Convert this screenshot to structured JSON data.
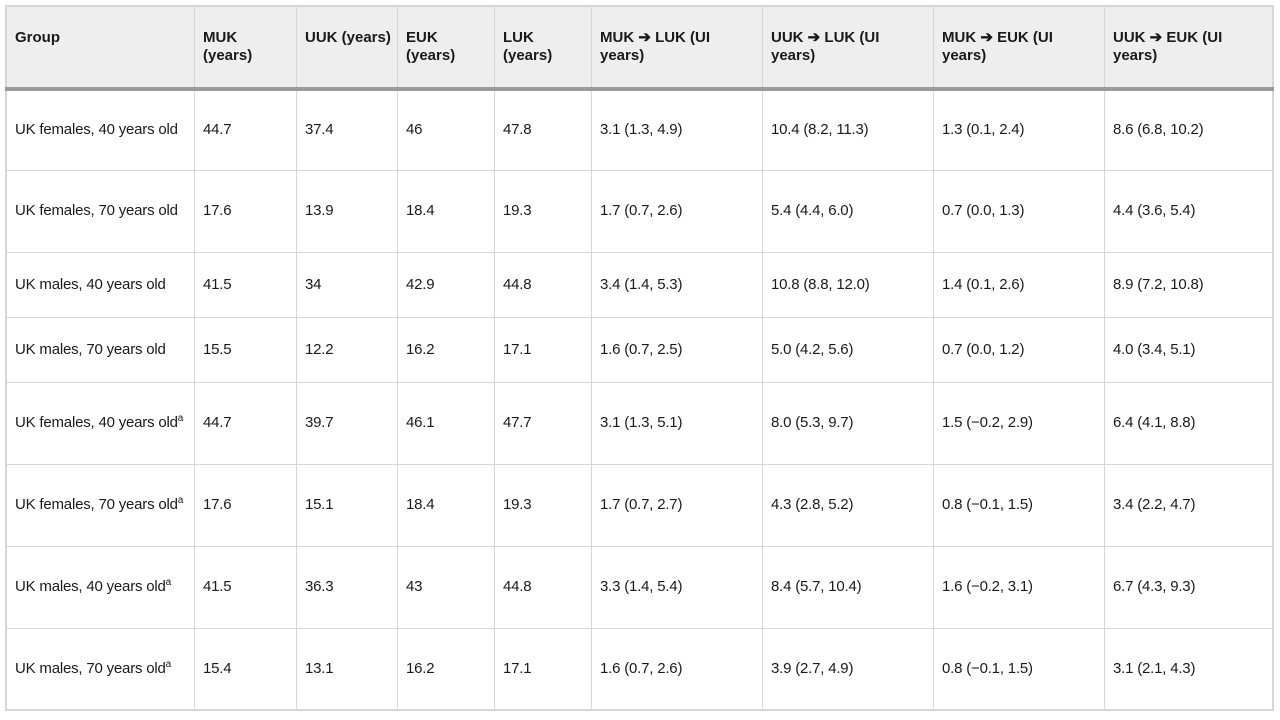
{
  "table": {
    "headers": [
      "Group",
      "MUK (years)",
      "UUK (years)",
      "EUK (years)",
      "LUK (years)",
      "MUK ➔ LUK (UI years)",
      "UUK ➔ LUK (UI years)",
      "MUK ➔ EUK (UI years)",
      "UUK ➔ EUK (UI years)"
    ],
    "rows": [
      {
        "group": "UK females, 40 years old",
        "sup": "",
        "cells": [
          "44.7",
          "37.4",
          "46",
          "47.8",
          "3.1 (1.3, 4.9)",
          "10.4 (8.2, 11.3)",
          "1.3 (0.1, 2.4)",
          "8.6 (6.8, 10.2)"
        ]
      },
      {
        "group": "UK females, 70 years old",
        "sup": "",
        "cells": [
          "17.6",
          "13.9",
          "18.4",
          "19.3",
          "1.7 (0.7, 2.6)",
          "5.4 (4.4, 6.0)",
          "0.7 (0.0, 1.3)",
          "4.4 (3.6, 5.4)"
        ]
      },
      {
        "group": "UK males, 40 years old",
        "sup": "",
        "cells": [
          "41.5",
          "34",
          "42.9",
          "44.8",
          "3.4 (1.4, 5.3)",
          "10.8 (8.8, 12.0)",
          "1.4 (0.1, 2.6)",
          "8.9 (7.2, 10.8)"
        ]
      },
      {
        "group": "UK males, 70 years old",
        "sup": "",
        "cells": [
          "15.5",
          "12.2",
          "16.2",
          "17.1",
          "1.6 (0.7, 2.5)",
          "5.0 (4.2, 5.6)",
          "0.7 (0.0, 1.2)",
          "4.0 (3.4, 5.1)"
        ]
      },
      {
        "group": "UK females, 40 years old",
        "sup": "a",
        "cells": [
          "44.7",
          "39.7",
          "46.1",
          "47.7",
          "3.1 (1.3, 5.1)",
          "8.0 (5.3, 9.7)",
          "1.5 (−0.2, 2.9)",
          "6.4 (4.1, 8.8)"
        ]
      },
      {
        "group": "UK females, 70 years old",
        "sup": "a",
        "cells": [
          "17.6",
          "15.1",
          "18.4",
          "19.3",
          "1.7 (0.7, 2.7)",
          "4.3 (2.8, 5.2)",
          "0.8 (−0.1, 1.5)",
          "3.4 (2.2, 4.7)"
        ]
      },
      {
        "group": "UK males, 40 years old",
        "sup": "a",
        "cells": [
          "41.5",
          "36.3",
          "43",
          "44.8",
          "3.3 (1.4, 5.4)",
          "8.4 (5.7, 10.4)",
          "1.6 (−0.2, 3.1)",
          "6.7 (4.3, 9.3)"
        ]
      },
      {
        "group": "UK males, 70 years old",
        "sup": "a",
        "cells": [
          "15.4",
          "13.1",
          "16.2",
          "17.1",
          "1.6 (0.7, 2.6)",
          "3.9 (2.7, 4.9)",
          "0.8 (−0.1, 1.5)",
          "3.1 (2.1, 4.3)"
        ]
      }
    ]
  }
}
